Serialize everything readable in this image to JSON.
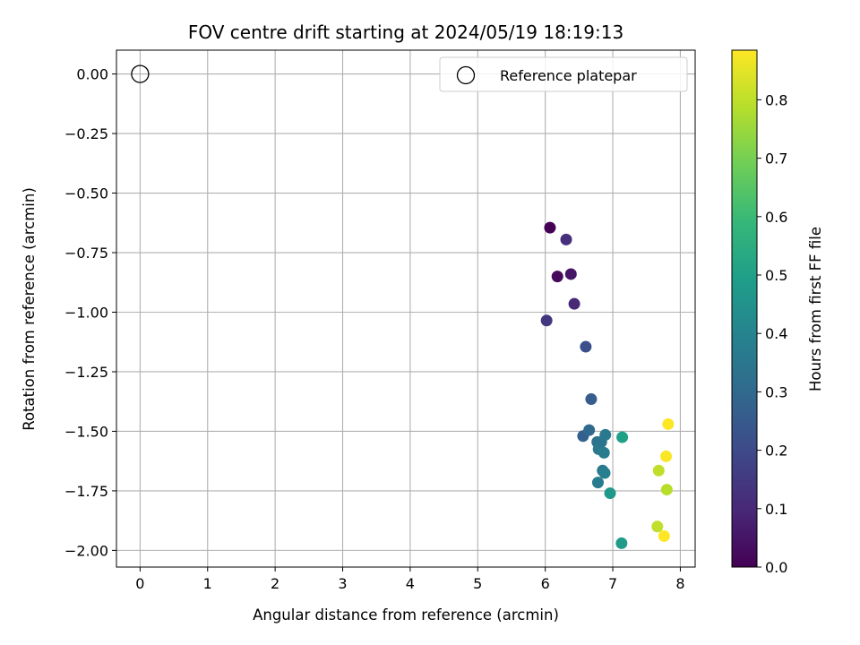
{
  "chart_data": {
    "type": "scatter",
    "title": "FOV centre drift starting at 2024/05/19 18:19:13",
    "xlabel": "Angular distance from reference (arcmin)",
    "ylabel": "Rotation from reference (arcmin)",
    "xlim": [
      -0.35,
      8.22
    ],
    "ylim": [
      -2.07,
      0.1
    ],
    "grid": true,
    "legend": {
      "placement": "top-right",
      "entries": [
        "Reference platepar"
      ]
    },
    "x_ticks": [
      "0",
      "1",
      "2",
      "3",
      "4",
      "5",
      "6",
      "7",
      "8"
    ],
    "x_tick_values": [
      0,
      1,
      2,
      3,
      4,
      5,
      6,
      7,
      8
    ],
    "y_ticks": [
      "0.00",
      "−0.25",
      "−0.50",
      "−0.75",
      "−1.00",
      "−1.25",
      "−1.50",
      "−1.75",
      "−2.00"
    ],
    "y_tick_values": [
      0,
      -0.25,
      -0.5,
      -0.75,
      -1.0,
      -1.25,
      -1.5,
      -1.75,
      -2.0
    ],
    "colorbar": {
      "label": "Hours from first FF file",
      "colormap": "viridis",
      "range": [
        0,
        0.885
      ],
      "ticks": [
        "0.0",
        "0.1",
        "0.2",
        "0.3",
        "0.4",
        "0.5",
        "0.6",
        "0.7",
        "0.8"
      ],
      "tick_values": [
        0,
        0.1,
        0.2,
        0.3,
        0.4,
        0.5,
        0.6,
        0.7,
        0.8
      ]
    },
    "reference": {
      "name": "Reference platepar",
      "x": 0,
      "y": 0
    },
    "points": [
      {
        "x": 6.07,
        "y": -0.645,
        "t": 0.0
      },
      {
        "x": 6.18,
        "y": -0.85,
        "t": 0.02
      },
      {
        "x": 6.38,
        "y": -0.84,
        "t": 0.05
      },
      {
        "x": 6.31,
        "y": -0.695,
        "t": 0.12
      },
      {
        "x": 6.43,
        "y": -0.965,
        "t": 0.1
      },
      {
        "x": 6.02,
        "y": -1.035,
        "t": 0.14
      },
      {
        "x": 6.6,
        "y": -1.145,
        "t": 0.22
      },
      {
        "x": 6.68,
        "y": -1.365,
        "t": 0.26
      },
      {
        "x": 6.56,
        "y": -1.52,
        "t": 0.27
      },
      {
        "x": 6.65,
        "y": -1.495,
        "t": 0.3
      },
      {
        "x": 6.77,
        "y": -1.545,
        "t": 0.33
      },
      {
        "x": 6.79,
        "y": -1.575,
        "t": 0.35
      },
      {
        "x": 6.83,
        "y": -1.545,
        "t": 0.34
      },
      {
        "x": 6.89,
        "y": -1.515,
        "t": 0.36
      },
      {
        "x": 6.87,
        "y": -1.59,
        "t": 0.37
      },
      {
        "x": 6.85,
        "y": -1.665,
        "t": 0.35
      },
      {
        "x": 6.88,
        "y": -1.675,
        "t": 0.38
      },
      {
        "x": 6.78,
        "y": -1.715,
        "t": 0.37
      },
      {
        "x": 6.96,
        "y": -1.76,
        "t": 0.47
      },
      {
        "x": 7.14,
        "y": -1.525,
        "t": 0.5
      },
      {
        "x": 7.13,
        "y": -1.97,
        "t": 0.48
      },
      {
        "x": 7.82,
        "y": -1.47,
        "t": 0.885
      },
      {
        "x": 7.79,
        "y": -1.605,
        "t": 0.88
      },
      {
        "x": 7.68,
        "y": -1.665,
        "t": 0.8
      },
      {
        "x": 7.8,
        "y": -1.745,
        "t": 0.79
      },
      {
        "x": 7.66,
        "y": -1.9,
        "t": 0.8
      },
      {
        "x": 7.76,
        "y": -1.94,
        "t": 0.885
      }
    ]
  }
}
